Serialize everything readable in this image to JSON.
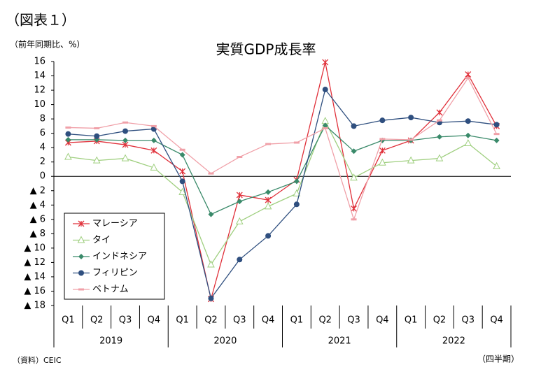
{
  "chart_data": {
    "type": "line",
    "figure_label": "（図表１）",
    "title": "実質GDP成長率",
    "y_unit": "（前年同期比、%）",
    "source": "（資料）CEIC",
    "x_unit": "（四半期）",
    "categories": [
      "Q1",
      "Q2",
      "Q3",
      "Q4",
      "Q1",
      "Q2",
      "Q3",
      "Q4",
      "Q1",
      "Q2",
      "Q3",
      "Q4",
      "Q1",
      "Q2",
      "Q3",
      "Q4"
    ],
    "x_groups": [
      "2019",
      "2020",
      "2021",
      "2022"
    ],
    "ylim": [
      -18,
      16
    ],
    "yticks": [
      16,
      14,
      12,
      10,
      8,
      6,
      4,
      2,
      0,
      {
        "value": -2,
        "label": "▲ 2"
      },
      {
        "value": -4,
        "label": "▲ 4"
      },
      {
        "value": -6,
        "label": "▲ 6"
      },
      {
        "value": -8,
        "label": "▲ 8"
      },
      {
        "value": -10,
        "label": "▲ 10"
      },
      {
        "value": -12,
        "label": "▲ 12"
      },
      {
        "value": -14,
        "label": "▲ 14"
      },
      {
        "value": -16,
        "label": "▲ 16"
      },
      {
        "value": -18,
        "label": "▲ 18"
      }
    ],
    "legend": "lower left",
    "series": [
      {
        "name": "マレーシア",
        "color": "#e0303a",
        "marker": "x",
        "values": [
          4.7,
          4.9,
          4.4,
          3.6,
          0.7,
          -17.1,
          -2.6,
          -3.3,
          -0.5,
          15.9,
          -4.5,
          3.6,
          5.0,
          8.9,
          14.2,
          7.0
        ]
      },
      {
        "name": "タイ",
        "color": "#9fcf7f",
        "marker": "triangle",
        "values": [
          2.7,
          2.2,
          2.5,
          1.2,
          -2.2,
          -12.3,
          -6.3,
          -4.2,
          -2.4,
          7.7,
          -0.2,
          1.9,
          2.2,
          2.5,
          4.6,
          1.4
        ]
      },
      {
        "name": "インドネシア",
        "color": "#3a8a6a",
        "marker": "diamond",
        "values": [
          5.1,
          5.1,
          5.0,
          5.0,
          3.0,
          -5.3,
          -3.5,
          -2.2,
          -0.7,
          7.1,
          3.5,
          5.0,
          5.0,
          5.5,
          5.7,
          5.0
        ]
      },
      {
        "name": "フィリピン",
        "color": "#2f4f7f",
        "marker": "circle",
        "values": [
          5.9,
          5.6,
          6.3,
          6.6,
          -0.7,
          -17.0,
          -11.6,
          -8.3,
          -3.9,
          12.1,
          7.0,
          7.8,
          8.2,
          7.5,
          7.7,
          7.2
        ]
      },
      {
        "name": "ベトナム",
        "color": "#f0a0a8",
        "marker": "square",
        "values": [
          6.8,
          6.7,
          7.5,
          7.0,
          3.7,
          0.4,
          2.7,
          4.5,
          4.7,
          6.7,
          -6.0,
          5.2,
          5.1,
          7.8,
          13.7,
          5.9
        ]
      }
    ]
  }
}
